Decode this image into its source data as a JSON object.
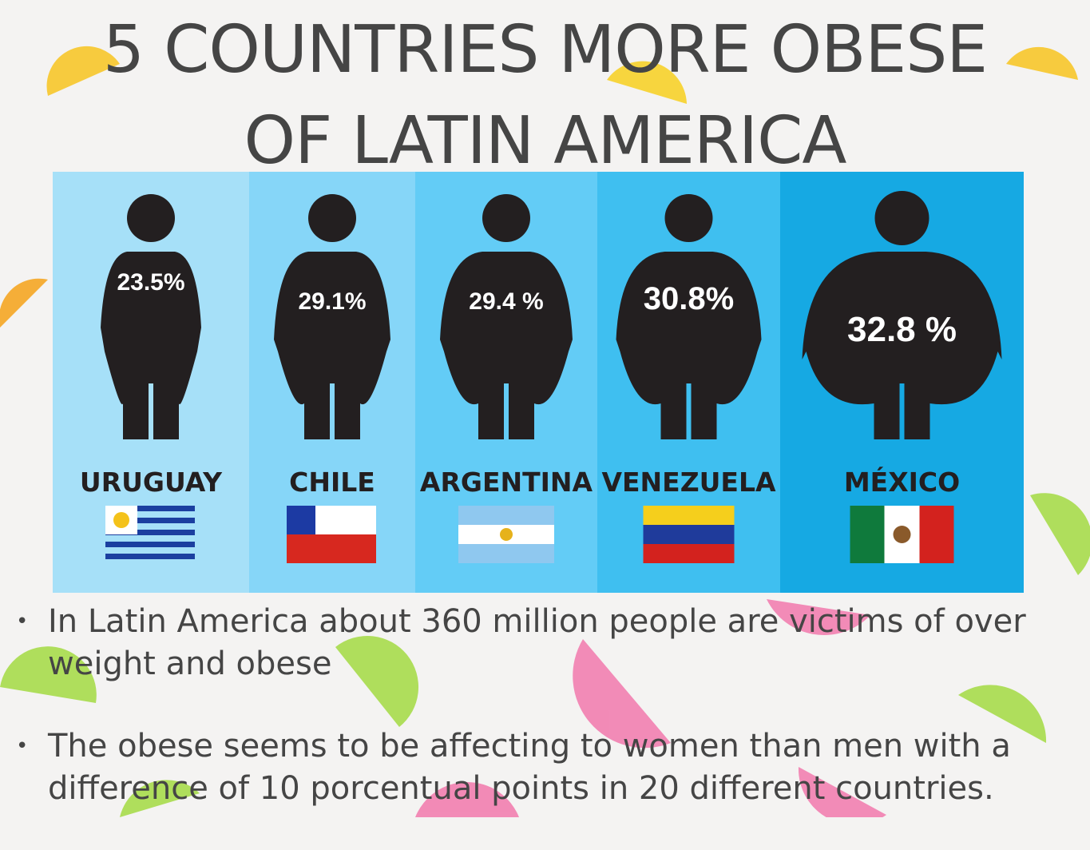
{
  "header": {
    "title_lines": [
      "5 COUNTRIES MORE OBESE",
      "OF LATIN AMERICA"
    ]
  },
  "infographic": {
    "panels": [
      {
        "percent": "23.5%",
        "country": "URUGUAY"
      },
      {
        "percent": "29.1%",
        "country": "CHILE"
      },
      {
        "percent": "29.4 %",
        "country": "ARGENTINA"
      },
      {
        "percent": "30.8%",
        "country": "VENEZUELA"
      },
      {
        "percent": "32.8 %",
        "country": "MÉXICO"
      }
    ]
  },
  "bullets": [
    "In Latin America about 360 million people are victims of over weight and obese",
    "The obese seems to be affecting to women than men with a difference of 10 porcentual points in 20 different countries."
  ]
}
